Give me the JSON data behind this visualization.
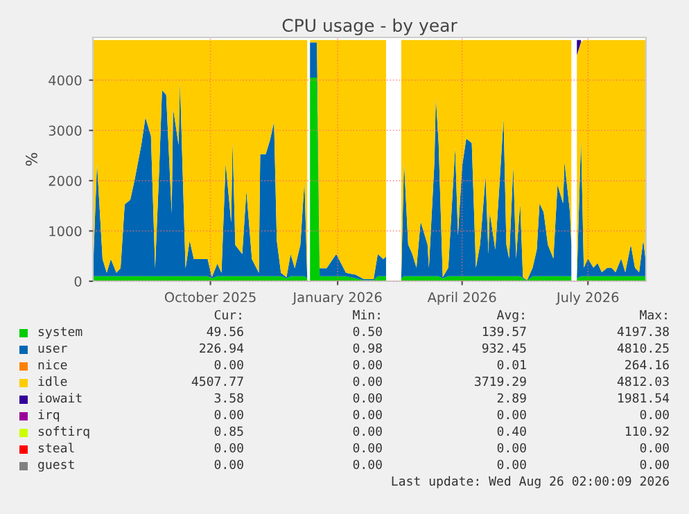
{
  "chart_data": {
    "type": "area",
    "stacked": true,
    "title": "CPU usage - by year",
    "ylabel": "%",
    "x": [
      "2025-07-08",
      "2025-07-11",
      "2025-07-15",
      "2025-07-18",
      "2025-07-21",
      "2025-07-25",
      "2025-07-28",
      "2025-07-31",
      "2025-08-04",
      "2025-08-07",
      "2025-08-12",
      "2025-08-15",
      "2025-08-19",
      "2025-08-22",
      "2025-08-25",
      "2025-08-27",
      "2025-08-30",
      "2025-09-03",
      "2025-09-04",
      "2025-09-08",
      "2025-09-09",
      "2025-09-13",
      "2025-09-16",
      "2025-09-19",
      "2025-09-24",
      "2025-09-29",
      "2025-10-02",
      "2025-10-06",
      "2025-10-09",
      "2025-10-12",
      "2025-10-16",
      "2025-10-17",
      "2025-10-19",
      "2025-10-24",
      "2025-10-27",
      "2025-10-31",
      "2025-11-05",
      "2025-11-06",
      "2025-11-10",
      "2025-11-13",
      "2025-11-16",
      "2025-11-18",
      "2025-11-21",
      "2025-11-25",
      "2025-11-28",
      "2025-12-01",
      "2025-12-05",
      "2025-12-08",
      "2025-12-10",
      "2025-12-11",
      "2025-12-12",
      "2025-12-16",
      "2025-12-17",
      "2025-12-19",
      "2025-12-24",
      "2025-12-31",
      "2026-01-07",
      "2026-01-14",
      "2026-01-20",
      "2026-01-27",
      "2026-01-30",
      "2026-02-03",
      "2026-02-05",
      "2026-02-10",
      "2026-02-16",
      "2026-02-18",
      "2026-02-21",
      "2026-02-24",
      "2026-02-27",
      "2026-03-02",
      "2026-03-07",
      "2026-03-08",
      "2026-03-12",
      "2026-03-13",
      "2026-03-15",
      "2026-03-18",
      "2026-03-22",
      "2026-03-27",
      "2026-03-29",
      "2026-04-01",
      "2026-04-04",
      "2026-04-08",
      "2026-04-11",
      "2026-04-14",
      "2026-04-18",
      "2026-04-20",
      "2026-04-21",
      "2026-04-25",
      "2026-04-28",
      "2026-05-01",
      "2026-05-03",
      "2026-05-05",
      "2026-05-08",
      "2026-05-10",
      "2026-05-13",
      "2026-05-15",
      "2026-05-18",
      "2026-05-22",
      "2026-05-25",
      "2026-05-27",
      "2026-05-30",
      "2026-06-02",
      "2026-06-06",
      "2026-06-09",
      "2026-06-13",
      "2026-06-14",
      "2026-06-18",
      "2026-06-19",
      "2026-06-21",
      "2026-06-23",
      "2026-06-26",
      "2026-06-28",
      "2026-07-01",
      "2026-07-05",
      "2026-07-08",
      "2026-07-11",
      "2026-07-15",
      "2026-07-18",
      "2026-07-21",
      "2026-07-25",
      "2026-07-28",
      "2026-08-01",
      "2026-08-04",
      "2026-08-07",
      "2026-08-10",
      "2026-08-12"
    ],
    "series": [
      {
        "name": "system",
        "color": "#00cc00",
        "values": [
          100,
          100,
          100,
          100,
          100,
          100,
          100,
          100,
          100,
          100,
          100,
          100,
          100,
          100,
          100,
          100,
          100,
          100,
          100,
          100,
          100,
          100,
          100,
          100,
          100,
          100,
          60,
          100,
          100,
          100,
          100,
          100,
          100,
          100,
          100,
          100,
          100,
          100,
          100,
          100,
          100,
          100,
          100,
          60,
          100,
          100,
          100,
          100,
          60,
          null,
          4050,
          4050,
          4050,
          100,
          100,
          100,
          100,
          60,
          20,
          20,
          100,
          100,
          100,
          null,
          60,
          100,
          100,
          100,
          100,
          100,
          100,
          100,
          100,
          100,
          100,
          60,
          100,
          100,
          100,
          100,
          100,
          100,
          100,
          100,
          100,
          100,
          100,
          100,
          100,
          100,
          100,
          100,
          100,
          100,
          100,
          60,
          10,
          100,
          100,
          100,
          100,
          100,
          100,
          100,
          100,
          100,
          100,
          100,
          null,
          60,
          100,
          100,
          100,
          100,
          100,
          100,
          100,
          100,
          100,
          100,
          100,
          100,
          100,
          100,
          100,
          100
        ]
      },
      {
        "name": "user",
        "color": "#0066b3",
        "values": [
          70,
          2250,
          340,
          70,
          340,
          70,
          160,
          1430,
          1520,
          1890,
          2610,
          3160,
          2790,
          160,
          2160,
          3700,
          3610,
          1250,
          3340,
          2610,
          3880,
          160,
          710,
          340,
          340,
          340,
          20,
          250,
          70,
          2250,
          1070,
          2700,
          620,
          440,
          1700,
          340,
          70,
          2430,
          2430,
          2700,
          3070,
          710,
          70,
          20,
          440,
          160,
          620,
          1890,
          20,
          null,
          700,
          700,
          700,
          160,
          160,
          440,
          70,
          70,
          20,
          20,
          440,
          340,
          390,
          null,
          20,
          2280,
          630,
          440,
          170,
          1090,
          630,
          170,
          2280,
          3570,
          2650,
          20,
          170,
          2560,
          810,
          2190,
          2740,
          2650,
          170,
          630,
          2000,
          440,
          1270,
          530,
          1820,
          3150,
          630,
          350,
          2190,
          350,
          1450,
          20,
          10,
          170,
          530,
          1450,
          1270,
          630,
          350,
          1820,
          1450,
          2280,
          1270,
          630,
          null,
          20,
          2740,
          170,
          350,
          170,
          260,
          80,
          170,
          170,
          80,
          350,
          80,
          630,
          170,
          80,
          720,
          260
        ]
      },
      {
        "name": "nice",
        "color": "#ff8000",
        "values": [
          null,
          null,
          null,
          null,
          null,
          null,
          null,
          null,
          null,
          null,
          null,
          null,
          null,
          null,
          null,
          null,
          null,
          null,
          null,
          null,
          null,
          null,
          null,
          null,
          null,
          null,
          null,
          null,
          null,
          null,
          null,
          null,
          null,
          null,
          null,
          null,
          null,
          null,
          null,
          null,
          null,
          null,
          null,
          null,
          null,
          null,
          null,
          null,
          null,
          null,
          null,
          null,
          null,
          null,
          null,
          null,
          null,
          null,
          null,
          null,
          null,
          null,
          null,
          null,
          null,
          null,
          null,
          null,
          null,
          null,
          null,
          null,
          null,
          null,
          null,
          null,
          null,
          null,
          null,
          null,
          null,
          null,
          null,
          null,
          null,
          null,
          null,
          null,
          null,
          null,
          null,
          null,
          null,
          null,
          null,
          null,
          null,
          null,
          null,
          null,
          null,
          null,
          null,
          null,
          null,
          null,
          null,
          null,
          null,
          null,
          null,
          null,
          null,
          null,
          null,
          null,
          null,
          null,
          null,
          null,
          null,
          null,
          null,
          null,
          null,
          null
        ]
      },
      {
        "name": "idle",
        "color": "#ffcc00",
        "values": [
          4630,
          2450,
          4360,
          4630,
          4360,
          4630,
          4540,
          3270,
          3180,
          2810,
          2090,
          1540,
          1910,
          4540,
          2540,
          1000,
          1090,
          3450,
          1360,
          2090,
          820,
          4540,
          3990,
          4360,
          4360,
          4360,
          4720,
          4450,
          4630,
          2450,
          3630,
          2000,
          4080,
          4260,
          3000,
          4360,
          4630,
          2270,
          2270,
          2000,
          1630,
          3990,
          4630,
          4720,
          4260,
          4540,
          4080,
          2810,
          4720,
          null,
          50,
          50,
          50,
          4540,
          4540,
          4260,
          4630,
          4670,
          4760,
          4760,
          4260,
          4360,
          4310,
          null,
          4720,
          2420,
          4070,
          4260,
          4530,
          3610,
          4070,
          4530,
          2420,
          1130,
          2050,
          4720,
          4530,
          2140,
          3890,
          2510,
          1960,
          2050,
          4530,
          4070,
          2700,
          4260,
          3430,
          4170,
          2880,
          1550,
          4070,
          4350,
          2510,
          4350,
          3250,
          4720,
          4780,
          4530,
          4170,
          3250,
          3430,
          4070,
          4350,
          2880,
          3250,
          2420,
          3430,
          4070,
          null,
          4420,
          1920,
          4530,
          4350,
          4530,
          4440,
          4620,
          4530,
          4530,
          4620,
          4350,
          4620,
          4070,
          4530,
          4620,
          3980,
          4440
        ]
      },
      {
        "name": "iowait",
        "color": "#330099",
        "values": [
          null,
          null,
          null,
          null,
          null,
          null,
          null,
          null,
          null,
          null,
          null,
          null,
          null,
          null,
          null,
          null,
          null,
          null,
          null,
          null,
          null,
          null,
          null,
          null,
          null,
          null,
          null,
          null,
          null,
          null,
          null,
          null,
          null,
          null,
          null,
          null,
          null,
          null,
          null,
          null,
          null,
          null,
          null,
          null,
          null,
          null,
          null,
          null,
          null,
          null,
          null,
          null,
          null,
          null,
          null,
          null,
          null,
          null,
          null,
          null,
          null,
          null,
          null,
          null,
          null,
          null,
          null,
          null,
          null,
          null,
          null,
          null,
          null,
          null,
          null,
          null,
          null,
          null,
          null,
          null,
          null,
          null,
          null,
          null,
          null,
          null,
          null,
          null,
          null,
          null,
          null,
          null,
          null,
          null,
          null,
          null,
          null,
          null,
          null,
          null,
          null,
          null,
          null,
          null,
          null,
          null,
          null,
          null,
          null,
          300,
          40,
          null,
          null,
          null,
          null,
          null,
          null,
          null,
          null,
          null,
          null,
          null,
          null,
          null,
          null,
          null
        ]
      },
      {
        "name": "irq",
        "color": "#990099",
        "values": [
          null,
          null,
          null,
          null,
          null,
          null,
          null,
          null,
          null,
          null,
          null,
          null,
          null,
          null,
          null,
          null,
          null,
          null,
          null,
          null,
          null,
          null,
          null,
          null,
          null,
          null,
          null,
          null,
          null,
          null,
          null,
          null,
          null,
          null,
          null,
          null,
          null,
          null,
          null,
          null,
          null,
          null,
          null,
          null,
          null,
          null,
          null,
          null,
          null,
          null,
          null,
          null,
          null,
          null,
          null,
          null,
          null,
          null,
          null,
          null,
          null,
          null,
          null,
          null,
          null,
          null,
          null,
          null,
          null,
          null,
          null,
          null,
          null,
          null,
          null,
          null,
          null,
          null,
          null,
          null,
          null,
          null,
          null,
          null,
          null,
          null,
          null,
          null,
          null,
          null,
          null,
          null,
          null,
          null,
          null,
          null,
          null,
          null,
          null,
          null,
          null,
          null,
          null,
          null,
          null,
          null,
          null,
          null,
          null,
          null,
          null,
          null,
          null,
          null,
          null,
          null,
          null,
          null,
          null,
          null,
          null,
          null,
          null,
          null,
          null,
          null
        ]
      },
      {
        "name": "softirq",
        "color": "#ccff00",
        "values": [
          null,
          null,
          null,
          null,
          null,
          null,
          null,
          null,
          null,
          null,
          null,
          null,
          null,
          null,
          null,
          null,
          null,
          null,
          null,
          null,
          null,
          null,
          null,
          null,
          null,
          null,
          null,
          null,
          null,
          null,
          null,
          null,
          null,
          null,
          null,
          null,
          null,
          null,
          null,
          null,
          null,
          null,
          null,
          null,
          null,
          null,
          null,
          null,
          null,
          null,
          null,
          null,
          null,
          null,
          null,
          null,
          null,
          null,
          null,
          null,
          null,
          null,
          null,
          null,
          null,
          null,
          null,
          null,
          null,
          null,
          null,
          null,
          null,
          null,
          null,
          null,
          null,
          null,
          null,
          null,
          null,
          null,
          null,
          null,
          null,
          null,
          null,
          null,
          null,
          null,
          null,
          null,
          null,
          null,
          null,
          null,
          null,
          null,
          null,
          null,
          null,
          null,
          null,
          null,
          null,
          null,
          null,
          null,
          null,
          null,
          null,
          null,
          null,
          null,
          null,
          null,
          null,
          null,
          null,
          null,
          null,
          null,
          null,
          null,
          null,
          null
        ]
      },
      {
        "name": "steal",
        "color": "#ff0000",
        "values": [
          null,
          null,
          null,
          null,
          null,
          null,
          null,
          null,
          null,
          null,
          null,
          null,
          null,
          null,
          null,
          null,
          null,
          null,
          null,
          null,
          null,
          null,
          null,
          null,
          null,
          null,
          null,
          null,
          null,
          null,
          null,
          null,
          null,
          null,
          null,
          null,
          null,
          null,
          null,
          null,
          null,
          null,
          null,
          null,
          null,
          null,
          null,
          null,
          null,
          null,
          null,
          null,
          null,
          null,
          null,
          null,
          null,
          null,
          null,
          null,
          null,
          null,
          null,
          null,
          null,
          null,
          null,
          null,
          null,
          null,
          null,
          null,
          null,
          null,
          null,
          null,
          null,
          null,
          null,
          null,
          null,
          null,
          null,
          null,
          null,
          null,
          null,
          null,
          null,
          null,
          null,
          null,
          null,
          null,
          null,
          null,
          null,
          null,
          null,
          null,
          null,
          null,
          null,
          null,
          null,
          null,
          null,
          null,
          null,
          null,
          null,
          null,
          null,
          null,
          null,
          null,
          null,
          null,
          null,
          null,
          null,
          null,
          null,
          null,
          null,
          null
        ]
      },
      {
        "name": "guest",
        "color": "#808080",
        "values": [
          null,
          null,
          null,
          null,
          null,
          null,
          null,
          null,
          null,
          null,
          null,
          null,
          null,
          null,
          null,
          null,
          null,
          null,
          null,
          null,
          null,
          null,
          null,
          null,
          null,
          null,
          null,
          null,
          null,
          null,
          null,
          null,
          null,
          null,
          null,
          null,
          null,
          null,
          null,
          null,
          null,
          null,
          null,
          null,
          null,
          null,
          null,
          null,
          null,
          null,
          null,
          null,
          null,
          null,
          null,
          null,
          null,
          null,
          null,
          null,
          null,
          null,
          null,
          null,
          null,
          null,
          null,
          null,
          null,
          null,
          null,
          null,
          null,
          null,
          null,
          null,
          null,
          null,
          null,
          null,
          null,
          null,
          null,
          null,
          null,
          null,
          null,
          null,
          null,
          null,
          null,
          null,
          null,
          null,
          null,
          null,
          null,
          null,
          null,
          null,
          null,
          null,
          null,
          null,
          null,
          null,
          null,
          null,
          null,
          null,
          null,
          null,
          null,
          null,
          null,
          null,
          null,
          null,
          null,
          null,
          null,
          null,
          null,
          null,
          null,
          null
        ]
      }
    ],
    "xlim": [
      "2025-07-08",
      "2026-08-12"
    ],
    "xticks": [
      {
        "value": "2025-10-01",
        "label": "October 2025"
      },
      {
        "value": "2026-01-01",
        "label": "January 2026"
      },
      {
        "value": "2026-04-01",
        "label": "April 2026"
      },
      {
        "value": "2026-07-01",
        "label": "July 2026"
      }
    ],
    "ylim": [
      0,
      4850
    ],
    "yticks": [
      0,
      1000,
      2000,
      3000,
      4000
    ],
    "grid": true,
    "legend": "bottom",
    "annotations": [
      "Cur:",
      "Min:",
      "Avg:",
      "Max:",
      "49.56",
      "0.50",
      "139.57",
      "4197.38",
      "226.94",
      "0.98",
      "932.45",
      "4810.25",
      "0.00",
      "0.00",
      "0.01",
      "264.16",
      "4507.77",
      "0.00",
      "3719.29",
      "4812.03",
      "3.58",
      "0.00",
      "2.89",
      "1981.54",
      "0.00",
      "0.00",
      "0.00",
      "0.00",
      "0.85",
      "0.00",
      "0.40",
      "110.92",
      "0.00",
      "0.00",
      "0.00",
      "0.00",
      "0.00",
      "0.00",
      "0.00",
      "0.00",
      "Last update: Wed Aug 26 02:00:09 2026"
    ]
  }
}
